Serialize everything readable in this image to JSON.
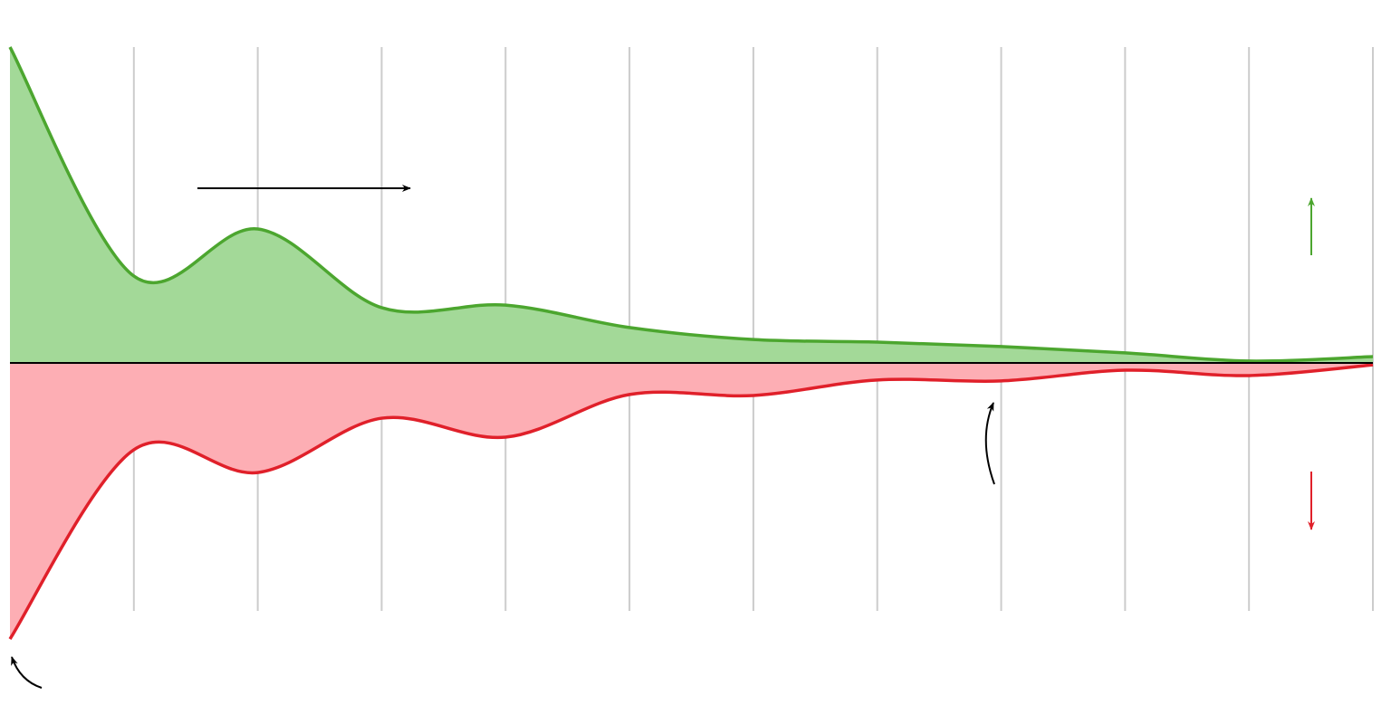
{
  "chart_data": {
    "type": "area",
    "title": "",
    "xlabel": "",
    "ylabel": "",
    "x": [
      0,
      1,
      2,
      3,
      4,
      5,
      6,
      7,
      8,
      9,
      10,
      11
    ],
    "xlim": [
      0,
      11
    ],
    "ylim": [
      -0.874,
      1.0
    ],
    "grid": {
      "vertical": true,
      "horizontal": false
    },
    "legend": "none",
    "series": [
      {
        "values": [
          1.0,
          0.275,
          0.424,
          0.175,
          0.183,
          0.112,
          0.074,
          0.066,
          0.052,
          0.032,
          0.006,
          0.02
        ],
        "color": "#4ca62f",
        "fill": "#a3d998"
      },
      {
        "values": [
          -0.874,
          -0.275,
          -0.347,
          -0.175,
          -0.235,
          -0.1,
          -0.103,
          -0.054,
          -0.057,
          -0.023,
          -0.04,
          -0.006
        ],
        "color": "#e0202a",
        "fill": "#fdaeb4"
      }
    ],
    "annotations": [
      {
        "kind": "arrow-right",
        "color": "#000000"
      },
      {
        "kind": "arrow-up",
        "color": "#4ca62f"
      },
      {
        "kind": "arrow-down",
        "color": "#e0202a"
      },
      {
        "kind": "curved-arrow",
        "color": "#000000"
      },
      {
        "kind": "curved-arrow",
        "color": "#000000"
      }
    ]
  }
}
